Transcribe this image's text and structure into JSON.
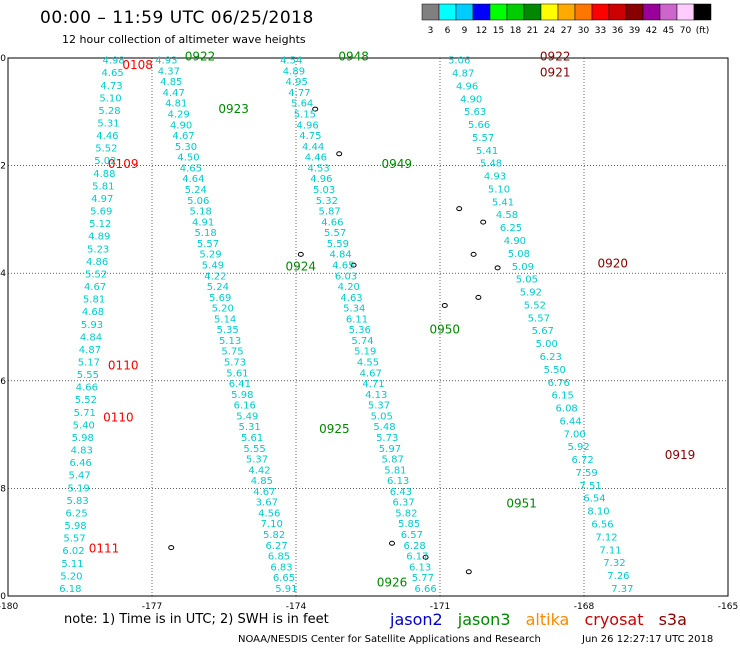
{
  "title": "00:00 – 11:59 UTC 06/25/2018",
  "subtitle": "12 hour collection of altimeter wave heights",
  "note": "note:  1) Time is in UTC;  2) SWH is in feet",
  "credit": "NOAA/NESDIS Center for Satellite Applications and Research",
  "timestamp": "Jun 26 12:27:17 UTC 2018",
  "colorbar": {
    "colors": [
      "#808080",
      "#00ffff",
      "#00ccff",
      "#0000ff",
      "#00ff00",
      "#00cc00",
      "#008800",
      "#ffff00",
      "#ffaa00",
      "#ff7700",
      "#ff0000",
      "#cc0000",
      "#880000",
      "#990099",
      "#cc66cc",
      "#ffccff",
      "#000000"
    ],
    "labels": [
      "3",
      "6",
      "9",
      "12",
      "15",
      "18",
      "21",
      "24",
      "27",
      "30",
      "33",
      "36",
      "39",
      "42",
      "45",
      "70",
      "(ft)"
    ]
  },
  "satellites": [
    {
      "name": "jason2",
      "color": "#0000cc"
    },
    {
      "name": "jason3",
      "color": "#008800"
    },
    {
      "name": "altika",
      "color": "#ff8800"
    },
    {
      "name": "cryosat",
      "color": "#cc0000"
    },
    {
      "name": "s3a",
      "color": "#880000"
    }
  ],
  "axes": {
    "x_ticks": [
      "-180",
      "-177",
      "-174",
      "-171",
      "-168",
      "-165"
    ],
    "y_ticks": [
      "0",
      "-2",
      "-4",
      "-6",
      "-8",
      "-10"
    ],
    "xlim": [
      -180,
      -165
    ],
    "ylim": [
      -10,
      0
    ]
  },
  "tracks": [
    {
      "color": "#00cccc",
      "lon_start": -177.8,
      "lon_end": -178.7,
      "values": [
        "4.98",
        "4.65",
        "4.73",
        "5.10",
        "5.28",
        "5.31",
        "4.46",
        "5.52",
        "5.02",
        "4.88",
        "5.81",
        "4.97",
        "5.69",
        "5.12",
        "4.89",
        "5.23",
        "4.86",
        "5.52",
        "4.67",
        "5.81",
        "4.68",
        "5.93",
        "4.84",
        "4.87",
        "5.17",
        "5.55",
        "4.66",
        "5.52",
        "5.71",
        "5.40",
        "5.98",
        "4.83",
        "6.46",
        "5.47",
        "5.19",
        "5.83",
        "6.25",
        "5.98",
        "5.57",
        "6.02",
        "5.11",
        "5.20",
        "6.18"
      ]
    },
    {
      "color": "#00cccc",
      "lon_start": -176.7,
      "lon_end": -174.2,
      "values": [
        "4.93",
        "4.37",
        "4.85",
        "4.47",
        "4.81",
        "4.29",
        "4.90",
        "4.67",
        "5.30",
        "4.50",
        "4.65",
        "4.64",
        "5.24",
        "5.06",
        "5.18",
        "4.91",
        "5.18",
        "5.57",
        "5.29",
        "5.49",
        "4.22",
        "5.24",
        "5.69",
        "5.20",
        "5.14",
        "5.35",
        "5.13",
        "5.75",
        "5.73",
        "5.61",
        "6.41",
        "5.98",
        "6.16",
        "5.49",
        "5.31",
        "5.61",
        "5.55",
        "5.37",
        "4.42",
        "4.85",
        "4.67",
        "3.67",
        "4.56",
        "7.10",
        "5.82",
        "6.27",
        "6.85",
        "6.83",
        "6.65",
        "5.91"
      ]
    },
    {
      "color": "#00cccc",
      "lon_start": -174.1,
      "lon_end": -171.3,
      "values": [
        "4.54",
        "4.89",
        "4.95",
        "4.77",
        "5.64",
        "5.15",
        "4.96",
        "4.75",
        "4.44",
        "4.46",
        "4.53",
        "4.96",
        "5.03",
        "5.32",
        "5.87",
        "4.66",
        "5.57",
        "5.59",
        "4.84",
        "4.65",
        "6.03",
        "4.20",
        "4.63",
        "5.34",
        "6.11",
        "5.36",
        "5.74",
        "5.19",
        "4.55",
        "4.67",
        "4.71",
        "4.13",
        "5.37",
        "5.05",
        "5.48",
        "5.73",
        "5.97",
        "5.87",
        "5.81",
        "6.13",
        "6.43",
        "6.37",
        "5.82",
        "5.85",
        "6.57",
        "6.28",
        "6.17",
        "6.13",
        "5.77",
        "6.66"
      ]
    },
    {
      "color": "#00cccc",
      "lon_start": -170.6,
      "lon_end": -167.2,
      "values": [
        "5.06",
        "4.87",
        "4.96",
        "4.90",
        "5.63",
        "5.66",
        "5.57",
        "5.41",
        "5.48",
        "4.93",
        "5.10",
        "5.41",
        "4.58",
        "6.25",
        "4.90",
        "5.08",
        "5.09",
        "5.05",
        "5.92",
        "5.52",
        "5.57",
        "5.67",
        "5.00",
        "6.23",
        "5.50",
        "6.76",
        "6.15",
        "6.08",
        "6.44",
        "7.00",
        "5.92",
        "6.72",
        "7.59",
        "7.51",
        "6.54",
        "8.10",
        "6.56",
        "7.12",
        "7.11",
        "7.32",
        "7.26",
        "7.37"
      ]
    }
  ],
  "time_labels": [
    {
      "text": "0108",
      "color": "#ff0000",
      "lon": -177.3,
      "lat": -0.13
    },
    {
      "text": "0922",
      "color": "#008800",
      "lon": -176.0,
      "lat": 0.03
    },
    {
      "text": "0923",
      "color": "#008800",
      "lon": -175.3,
      "lat": -0.95
    },
    {
      "text": "0109",
      "color": "#ff0000",
      "lon": -177.6,
      "lat": -1.97
    },
    {
      "text": "0924",
      "color": "#008800",
      "lon": -173.9,
      "lat": -3.88
    },
    {
      "text": "0110",
      "color": "#ff0000",
      "lon": -177.6,
      "lat": -5.72
    },
    {
      "text": "0110",
      "color": "#ff0000",
      "lon": -177.7,
      "lat": -6.68
    },
    {
      "text": "0111",
      "color": "#ff0000",
      "lon": -178.0,
      "lat": -9.12
    },
    {
      "text": "0925",
      "color": "#008800",
      "lon": -173.2,
      "lat": -6.9
    },
    {
      "text": "0926",
      "color": "#008800",
      "lon": -172.0,
      "lat": -9.75
    },
    {
      "text": "0948",
      "color": "#008800",
      "lon": -172.8,
      "lat": 0.03
    },
    {
      "text": "0949",
      "color": "#008800",
      "lon": -171.9,
      "lat": -1.97
    },
    {
      "text": "0950",
      "color": "#008800",
      "lon": -170.9,
      "lat": -5.05
    },
    {
      "text": "0951",
      "color": "#008800",
      "lon": -169.3,
      "lat": -8.28
    },
    {
      "text": "0922",
      "color": "#880000",
      "lon": -168.6,
      "lat": 0.03
    },
    {
      "text": "0921",
      "color": "#880000",
      "lon": -168.6,
      "lat": -0.27
    },
    {
      "text": "0920",
      "color": "#880000",
      "lon": -167.4,
      "lat": -3.82
    },
    {
      "text": "0919",
      "color": "#880000",
      "lon": -166.0,
      "lat": -7.38
    }
  ]
}
